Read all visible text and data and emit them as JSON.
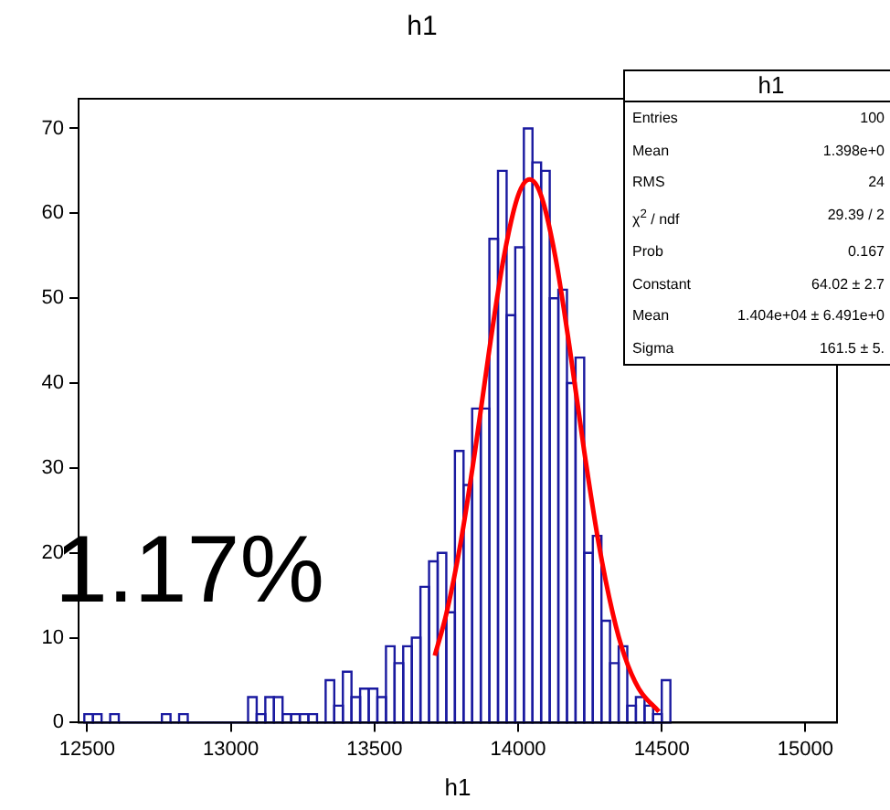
{
  "chart_data": {
    "type": "histogram",
    "title": "h1",
    "xlabel": "h1",
    "xlim": [
      12470,
      15110
    ],
    "xticks": [
      12500,
      13000,
      13500,
      14000,
      14500,
      15000
    ],
    "ylim": [
      0,
      73.5
    ],
    "yticks": [
      0,
      10,
      20,
      30,
      40,
      50,
      60,
      70
    ],
    "series": [
      {
        "color": "#1a1aa0",
        "bins": [
          12490,
          12520,
          12550,
          12580,
          12610,
          12640,
          12670,
          12700,
          12730,
          12760,
          12790,
          12820,
          12850,
          12880,
          12910,
          12940,
          12970,
          13000,
          13030,
          13060,
          13090,
          13120,
          13150,
          13180,
          13210,
          13240,
          13270,
          13300,
          13330,
          13360,
          13390,
          13420,
          13450,
          13480,
          13510,
          13540,
          13570,
          13600,
          13630,
          13660,
          13690,
          13720,
          13750,
          13780,
          13810,
          13840,
          13870,
          13900,
          13930,
          13960,
          13990,
          14020,
          14050,
          14080,
          14110,
          14140,
          14170,
          14200,
          14230,
          14260,
          14290,
          14320,
          14350,
          14380,
          14410,
          14440,
          14470,
          14500,
          14530
        ],
        "values": [
          1,
          1,
          0,
          1,
          0,
          0,
          0,
          0,
          0,
          1,
          0,
          1,
          0,
          0,
          0,
          0,
          0,
          0,
          0,
          3,
          1,
          3,
          3,
          1,
          1,
          1,
          1,
          0,
          5,
          2,
          6,
          3,
          4,
          4,
          3,
          9,
          7,
          9,
          10,
          16,
          19,
          20,
          13,
          32,
          28,
          37,
          37,
          57,
          65,
          48,
          56,
          70,
          66,
          65,
          50,
          51,
          40,
          43,
          20,
          22,
          12,
          7,
          9,
          2,
          3,
          2,
          1,
          5
        ]
      },
      {
        "type": "line",
        "color": "#ff0000",
        "x": [
          13710,
          13750,
          13800,
          13850,
          13900,
          13950,
          14000,
          14040,
          14080,
          14130,
          14180,
          14230,
          14280,
          14330,
          14370,
          14420,
          14490
        ],
        "values": [
          7.9,
          12.8,
          21.2,
          32.0,
          44.0,
          54.8,
          62.1,
          64.0,
          62.1,
          54.8,
          44.0,
          32.0,
          21.2,
          12.8,
          7.9,
          4.0,
          1.3
        ]
      }
    ],
    "annotations": [
      "1.17%",
      "h1",
      "Entries",
      "100",
      "Mean",
      "1.398e+0",
      "RMS",
      "24",
      "χ$^{2}$ / ndf",
      "29.39 / 2",
      "Prob",
      "0.167",
      "Constant",
      "64.02 ± 2.7",
      "Mean",
      "1.404e+04 ± 6.491e+0",
      "Sigma",
      "161.5 ± 5."
    ]
  }
}
